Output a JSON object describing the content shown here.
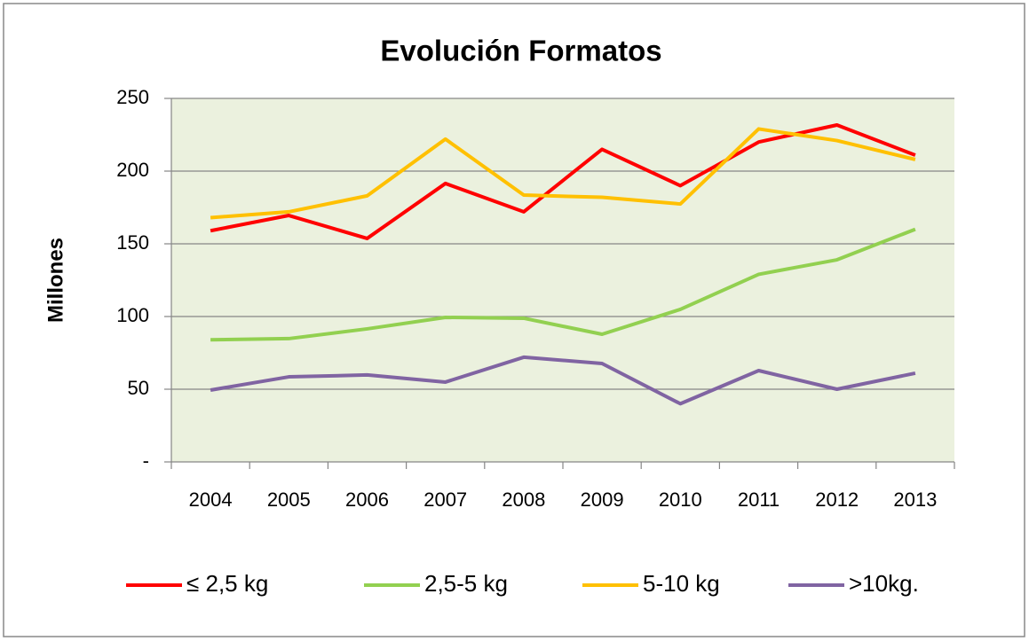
{
  "chart_data": {
    "type": "line",
    "title": "Evolución Formatos",
    "y_label": "Millones",
    "categories": [
      "2004",
      "2005",
      "2006",
      "2007",
      "2008",
      "2009",
      "2010",
      "2011",
      "2012",
      "2013"
    ],
    "series": [
      {
        "name": "≤ 2,5 kg",
        "color": "#ff0000",
        "values": [
          159,
          169.5,
          153.7,
          191.5,
          172,
          215,
          190,
          220,
          231.7,
          211
        ]
      },
      {
        "name": "2,5-5 kg",
        "color": "#92d050",
        "values": [
          84,
          84.8,
          91.5,
          99.4,
          98.8,
          87.8,
          104.9,
          129,
          139,
          160
        ]
      },
      {
        "name": "5-10 kg",
        "color": "#ffc000",
        "values": [
          168,
          172,
          183,
          222,
          183.5,
          182,
          177.4,
          229,
          221,
          208
        ]
      },
      {
        "name": ">10kg.",
        "color": "#8064a2",
        "values": [
          49.4,
          58.5,
          59.8,
          54.9,
          72,
          67.7,
          40,
          62.8,
          50,
          61
        ]
      }
    ],
    "ylim": [
      0,
      250
    ],
    "yticks": [
      {
        "value": 0,
        "label": "-"
      },
      50,
      100,
      150,
      200,
      250
    ],
    "grid": true,
    "legend": "bottom"
  }
}
